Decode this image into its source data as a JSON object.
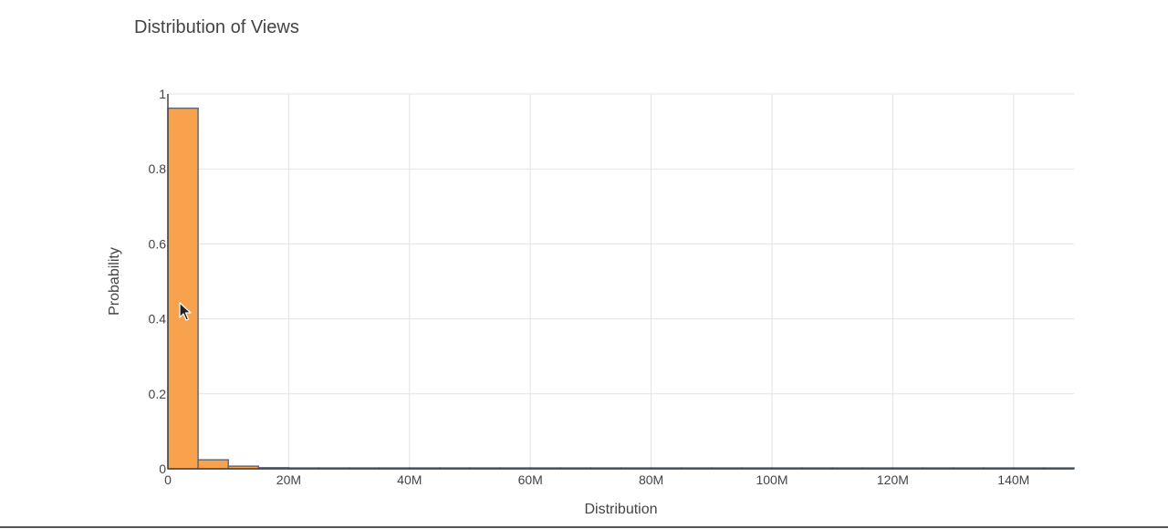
{
  "chart_data": {
    "type": "bar",
    "subtype": "histogram",
    "title": "Distribution of Views",
    "xlabel": "Distribution",
    "ylabel": "Probability",
    "xlim": [
      0,
      150000000
    ],
    "ylim": [
      0,
      1
    ],
    "bin_width": 5000000,
    "x_ticks": [
      {
        "value": 0,
        "label": "0"
      },
      {
        "value": 20000000,
        "label": "20M"
      },
      {
        "value": 40000000,
        "label": "40M"
      },
      {
        "value": 60000000,
        "label": "60M"
      },
      {
        "value": 80000000,
        "label": "80M"
      },
      {
        "value": 100000000,
        "label": "100M"
      },
      {
        "value": 120000000,
        "label": "120M"
      },
      {
        "value": 140000000,
        "label": "140M"
      }
    ],
    "y_ticks": [
      {
        "value": 0,
        "label": "0"
      },
      {
        "value": 0.2,
        "label": "0.2"
      },
      {
        "value": 0.4,
        "label": "0.4"
      },
      {
        "value": 0.6,
        "label": "0.6"
      },
      {
        "value": 0.8,
        "label": "0.8"
      },
      {
        "value": 1,
        "label": "1"
      }
    ],
    "bins": [
      {
        "start": 0,
        "end": 5000000,
        "value": 0.962
      },
      {
        "start": 5000000,
        "end": 10000000,
        "value": 0.024
      },
      {
        "start": 10000000,
        "end": 15000000,
        "value": 0.007
      },
      {
        "start": 15000000,
        "end": 20000000,
        "value": 0.003
      },
      {
        "start": 20000000,
        "end": 25000000,
        "value": 0.002
      },
      {
        "start": 25000000,
        "end": 30000000,
        "value": 0.0008
      },
      {
        "start": 30000000,
        "end": 35000000,
        "value": 0.0006
      },
      {
        "start": 35000000,
        "end": 40000000,
        "value": 0.0005
      },
      {
        "start": 40000000,
        "end": 45000000,
        "value": 0.0004
      },
      {
        "start": 45000000,
        "end": 50000000,
        "value": 0.0003
      },
      {
        "start": 50000000,
        "end": 55000000,
        "value": 0.0003
      },
      {
        "start": 55000000,
        "end": 60000000,
        "value": 0.0002
      },
      {
        "start": 60000000,
        "end": 65000000,
        "value": 0
      },
      {
        "start": 65000000,
        "end": 70000000,
        "value": 0.0002
      },
      {
        "start": 70000000,
        "end": 75000000,
        "value": 0.0002
      },
      {
        "start": 75000000,
        "end": 80000000,
        "value": 0.0001
      },
      {
        "start": 80000000,
        "end": 85000000,
        "value": 0.0001
      },
      {
        "start": 85000000,
        "end": 90000000,
        "value": 0.0001
      },
      {
        "start": 90000000,
        "end": 95000000,
        "value": 0.0001
      },
      {
        "start": 95000000,
        "end": 100000000,
        "value": 0
      },
      {
        "start": 100000000,
        "end": 105000000,
        "value": 0.0001
      },
      {
        "start": 105000000,
        "end": 110000000,
        "value": 0
      },
      {
        "start": 110000000,
        "end": 115000000,
        "value": 0.0001
      },
      {
        "start": 115000000,
        "end": 120000000,
        "value": 0
      },
      {
        "start": 120000000,
        "end": 125000000,
        "value": 0.0001
      },
      {
        "start": 125000000,
        "end": 130000000,
        "value": 0
      },
      {
        "start": 130000000,
        "end": 135000000,
        "value": 0.0001
      },
      {
        "start": 135000000,
        "end": 140000000,
        "value": 0
      },
      {
        "start": 140000000,
        "end": 145000000,
        "value": 0.0001
      },
      {
        "start": 145000000,
        "end": 150000000,
        "value": 0.0001
      }
    ],
    "grid": true,
    "legend": "none",
    "colors": {
      "bar_fill": "#f8a24e",
      "bar_outline": "#5a6570",
      "grid": "#e3e3e3",
      "text": "#444444"
    }
  },
  "cursor": {
    "icon": "mouse-pointer-icon"
  }
}
